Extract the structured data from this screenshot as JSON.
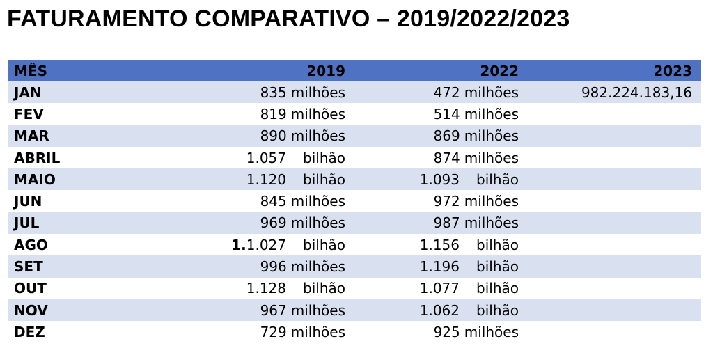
{
  "title": "FATURAMENTO COMPARATIVO – 2019/2022/2023",
  "table": {
    "headers": [
      "MÊS",
      "2019",
      "2022",
      "2023"
    ],
    "rows": [
      {
        "month": "JAN",
        "y2019": {
          "num": "835",
          "unit": "milhões",
          "kind": "milhoes"
        },
        "y2022": {
          "num": "472",
          "unit": "milhões",
          "kind": "milhoes"
        },
        "y2023": "982.224.183,16"
      },
      {
        "month": "FEV",
        "y2019": {
          "num": "819",
          "unit": "milhões",
          "kind": "milhoes"
        },
        "y2022": {
          "num": "514",
          "unit": "milhões",
          "kind": "milhoes"
        },
        "y2023": ""
      },
      {
        "month": "MAR",
        "y2019": {
          "num": "890",
          "unit": "milhões",
          "kind": "milhoes"
        },
        "y2022": {
          "num": "869",
          "unit": "milhões",
          "kind": "milhoes"
        },
        "y2023": ""
      },
      {
        "month": "ABRIL",
        "y2019": {
          "num": "1.057",
          "unit": "bilhão",
          "kind": "bilhao"
        },
        "y2022": {
          "num": "874",
          "unit": "milhões",
          "kind": "milhoes"
        },
        "y2023": ""
      },
      {
        "month": "MAIO",
        "y2019": {
          "num": "1.120",
          "unit": "bilhão",
          "kind": "bilhao"
        },
        "y2022": {
          "num": "1.093",
          "unit": "bilhão",
          "kind": "bilhao"
        },
        "y2023": ""
      },
      {
        "month": "JUN",
        "y2019": {
          "num": "845",
          "unit": "milhões",
          "kind": "milhoes"
        },
        "y2022": {
          "num": "972",
          "unit": "milhões",
          "kind": "milhoes"
        },
        "y2023": ""
      },
      {
        "month": "JUL",
        "y2019": {
          "num": "969",
          "unit": "milhões",
          "kind": "milhoes"
        },
        "y2022": {
          "num": "987",
          "unit": "milhões",
          "kind": "milhoes"
        },
        "y2023": ""
      },
      {
        "month": "AGO",
        "y2019": {
          "num": "1.1.027",
          "unit": "bilhão",
          "kind": "bilhao",
          "bold_prefix": "1."
        },
        "y2022": {
          "num": "1.156",
          "unit": "bilhão",
          "kind": "bilhao"
        },
        "y2023": ""
      },
      {
        "month": "SET",
        "y2019": {
          "num": "996",
          "unit": "milhões",
          "kind": "milhoes"
        },
        "y2022": {
          "num": "1.196",
          "unit": "bilhão",
          "kind": "bilhao"
        },
        "y2023": ""
      },
      {
        "month": "OUT",
        "y2019": {
          "num": "1.128",
          "unit": "bilhão",
          "kind": "bilhao"
        },
        "y2022": {
          "num": "1.077",
          "unit": "bilhão",
          "kind": "bilhao"
        },
        "y2023": ""
      },
      {
        "month": "NOV",
        "y2019": {
          "num": "967",
          "unit": "milhões",
          "kind": "milhoes"
        },
        "y2022": {
          "num": "1.062",
          "unit": "bilhão",
          "kind": "bilhao"
        },
        "y2023": ""
      },
      {
        "month": "DEZ",
        "y2019": {
          "num": "729",
          "unit": "milhões",
          "kind": "milhoes"
        },
        "y2022": {
          "num": "925",
          "unit": "milhões",
          "kind": "milhoes"
        },
        "y2023": ""
      }
    ]
  },
  "colors": {
    "header_bg": "#4f73c2",
    "band_bg": "#d9e0ef",
    "plain_bg": "#ffffff"
  }
}
